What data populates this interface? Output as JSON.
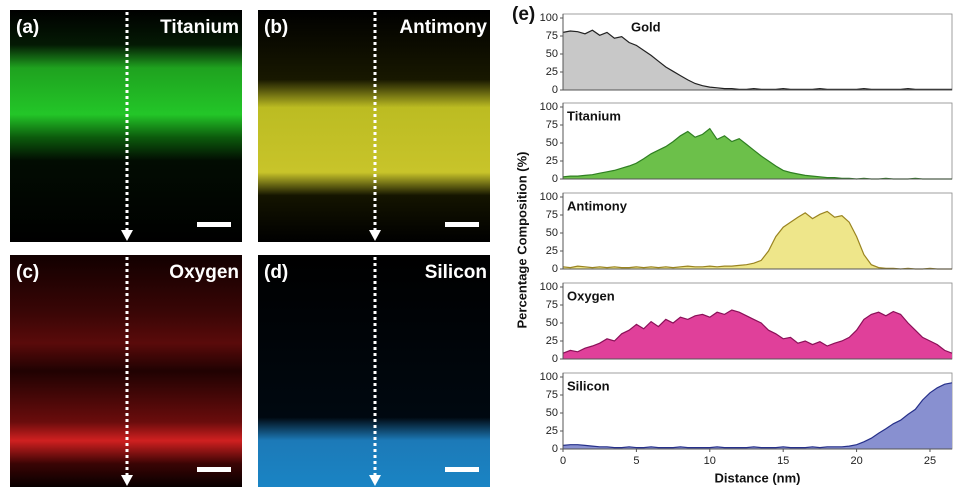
{
  "panels": [
    {
      "label": "(a)",
      "element": "Titanium"
    },
    {
      "label": "(b)",
      "element": "Antimony"
    },
    {
      "label": "(c)",
      "element": "Oxygen"
    },
    {
      "label": "(d)",
      "element": "Silicon"
    }
  ],
  "panel_e_label": "(e)",
  "y_label": "Percentage Composition (%)",
  "chart_data": [
    {
      "type": "area",
      "title": "Gold",
      "color": "#c8c8c8",
      "line_color": "#222222",
      "x": [
        0,
        0.5,
        1,
        1.5,
        2,
        2.5,
        3,
        3.5,
        4,
        4.5,
        5,
        5.5,
        6,
        6.5,
        7,
        7.5,
        8,
        8.5,
        9,
        9.5,
        10,
        10.5,
        11,
        11.5,
        12,
        12.5,
        13,
        13.5,
        14,
        14.5,
        15,
        15.5,
        16,
        16.5,
        17,
        17.5,
        18,
        18.5,
        19,
        19.5,
        20,
        20.5,
        21,
        21.5,
        22,
        22.5,
        23,
        23.5,
        24,
        24.5,
        25,
        25.5,
        26,
        26.5
      ],
      "values": [
        80,
        82,
        81,
        78,
        83,
        76,
        80,
        72,
        74,
        66,
        62,
        55,
        48,
        40,
        32,
        26,
        20,
        14,
        9,
        6,
        4,
        3,
        2,
        2,
        1,
        1,
        2,
        1,
        1,
        1,
        2,
        1,
        1,
        1,
        1,
        2,
        1,
        1,
        1,
        1,
        1,
        2,
        1,
        1,
        1,
        1,
        1,
        2,
        1,
        1,
        1,
        1,
        1,
        1
      ],
      "xlim": [
        0,
        26.5
      ],
      "ylim": [
        0,
        100
      ],
      "yticks": [
        0,
        25,
        50,
        75,
        100
      ]
    },
    {
      "type": "area",
      "title": "Titanium",
      "color": "#6cc04a",
      "line_color": "#2f7f22",
      "x": [
        0,
        0.5,
        1,
        1.5,
        2,
        2.5,
        3,
        3.5,
        4,
        4.5,
        5,
        5.5,
        6,
        6.5,
        7,
        7.5,
        8,
        8.5,
        9,
        9.5,
        10,
        10.5,
        11,
        11.5,
        12,
        12.5,
        13,
        13.5,
        14,
        14.5,
        15,
        15.5,
        16,
        16.5,
        17,
        17.5,
        18,
        18.5,
        19,
        19.5,
        20,
        20.5,
        21,
        21.5,
        22,
        22.5,
        23,
        23.5,
        24,
        24.5,
        25,
        25.5,
        26,
        26.5
      ],
      "values": [
        3,
        4,
        4,
        5,
        6,
        8,
        10,
        12,
        15,
        18,
        22,
        28,
        35,
        40,
        45,
        52,
        60,
        66,
        58,
        62,
        70,
        55,
        60,
        52,
        56,
        48,
        40,
        32,
        25,
        18,
        12,
        9,
        7,
        5,
        4,
        3,
        2,
        2,
        1,
        1,
        0,
        1,
        0,
        0,
        1,
        0,
        0,
        0,
        1,
        0,
        0,
        0,
        0,
        0
      ],
      "xlim": [
        0,
        26.5
      ],
      "ylim": [
        0,
        100
      ],
      "yticks": [
        0,
        25,
        50,
        75,
        100
      ]
    },
    {
      "type": "area",
      "title": "Antimony",
      "color": "#eee68a",
      "line_color": "#9a8420",
      "x": [
        0,
        0.5,
        1,
        1.5,
        2,
        2.5,
        3,
        3.5,
        4,
        4.5,
        5,
        5.5,
        6,
        6.5,
        7,
        7.5,
        8,
        8.5,
        9,
        9.5,
        10,
        10.5,
        11,
        11.5,
        12,
        12.5,
        13,
        13.5,
        14,
        14.5,
        15,
        15.5,
        16,
        16.5,
        17,
        17.5,
        18,
        18.5,
        19,
        19.5,
        20,
        20.5,
        21,
        21.5,
        22,
        22.5,
        23,
        23.5,
        24,
        24.5,
        25,
        25.5,
        26,
        26.5
      ],
      "values": [
        3,
        2,
        4,
        3,
        2,
        3,
        2,
        3,
        2,
        2,
        3,
        2,
        3,
        2,
        3,
        2,
        3,
        4,
        3,
        3,
        4,
        3,
        4,
        4,
        5,
        6,
        8,
        12,
        25,
        45,
        58,
        65,
        72,
        78,
        70,
        76,
        80,
        72,
        74,
        65,
        45,
        20,
        6,
        2,
        1,
        1,
        0,
        1,
        0,
        0,
        1,
        0,
        0,
        0
      ],
      "xlim": [
        0,
        26.5
      ],
      "ylim": [
        0,
        100
      ],
      "yticks": [
        0,
        25,
        50,
        75,
        100
      ]
    },
    {
      "type": "area",
      "title": "Oxygen",
      "color": "#e0409a",
      "line_color": "#8a1058",
      "x": [
        0,
        0.5,
        1,
        1.5,
        2,
        2.5,
        3,
        3.5,
        4,
        4.5,
        5,
        5.5,
        6,
        6.5,
        7,
        7.5,
        8,
        8.5,
        9,
        9.5,
        10,
        10.5,
        11,
        11.5,
        12,
        12.5,
        13,
        13.5,
        14,
        14.5,
        15,
        15.5,
        16,
        16.5,
        17,
        17.5,
        18,
        18.5,
        19,
        19.5,
        20,
        20.5,
        21,
        21.5,
        22,
        22.5,
        23,
        23.5,
        24,
        24.5,
        25,
        25.5,
        26,
        26.5
      ],
      "values": [
        8,
        12,
        10,
        15,
        18,
        22,
        28,
        25,
        35,
        40,
        48,
        42,
        52,
        45,
        55,
        50,
        58,
        55,
        60,
        62,
        58,
        65,
        62,
        68,
        65,
        60,
        55,
        50,
        40,
        35,
        28,
        30,
        22,
        25,
        20,
        24,
        18,
        22,
        25,
        30,
        40,
        55,
        62,
        65,
        60,
        66,
        62,
        50,
        40,
        30,
        25,
        20,
        12,
        8
      ],
      "xlim": [
        0,
        26.5
      ],
      "ylim": [
        0,
        100
      ],
      "yticks": [
        0,
        25,
        50,
        75,
        100
      ]
    },
    {
      "type": "area",
      "title": "Silicon",
      "color": "#8890d0",
      "line_color": "#26308a",
      "x": [
        0,
        0.5,
        1,
        1.5,
        2,
        2.5,
        3,
        3.5,
        4,
        4.5,
        5,
        5.5,
        6,
        6.5,
        7,
        7.5,
        8,
        8.5,
        9,
        9.5,
        10,
        10.5,
        11,
        11.5,
        12,
        12.5,
        13,
        13.5,
        14,
        14.5,
        15,
        15.5,
        16,
        16.5,
        17,
        17.5,
        18,
        18.5,
        19,
        19.5,
        20,
        20.5,
        21,
        21.5,
        22,
        22.5,
        23,
        23.5,
        24,
        24.5,
        25,
        25.5,
        26,
        26.5
      ],
      "values": [
        5,
        6,
        6,
        5,
        4,
        3,
        3,
        2,
        2,
        3,
        2,
        2,
        3,
        2,
        2,
        2,
        3,
        2,
        2,
        2,
        2,
        3,
        2,
        2,
        2,
        2,
        3,
        2,
        2,
        2,
        3,
        2,
        2,
        2,
        3,
        2,
        3,
        3,
        3,
        4,
        6,
        10,
        15,
        22,
        28,
        35,
        40,
        48,
        55,
        68,
        78,
        85,
        90,
        92
      ],
      "xlim": [
        0,
        26.5
      ],
      "ylim": [
        0,
        100
      ],
      "yticks": [
        0,
        25,
        50,
        75,
        100
      ],
      "xticks": [
        0,
        5,
        10,
        15,
        20,
        25
      ],
      "x_label": "Distance (nm)"
    }
  ]
}
